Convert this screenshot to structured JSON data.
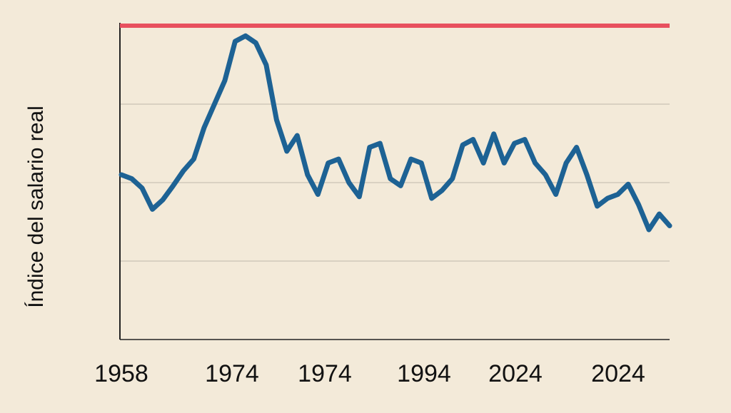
{
  "chart_data": {
    "type": "line",
    "title": "",
    "xlabel": "",
    "ylabel": "Índice del salario real",
    "x_tick_labels": [
      "1958",
      "1974",
      "1974",
      "1994",
      "2024",
      "2024"
    ],
    "grid": true,
    "legend": "none",
    "ylim": [
      0,
      4
    ],
    "reference_line": {
      "y": 4,
      "color": "#e8505e"
    },
    "series_color": "#1d6294",
    "series": [
      {
        "values": [
          2.1,
          2.05,
          1.93,
          1.66,
          1.78,
          1.96,
          2.15,
          2.3,
          2.7,
          3.0,
          3.3,
          3.8,
          3.87,
          3.78,
          3.5,
          2.8,
          2.4,
          2.6,
          2.1,
          1.85,
          2.25,
          2.3,
          2.0,
          1.82,
          2.45,
          2.5,
          2.05,
          1.96,
          2.3,
          2.25,
          1.8,
          1.9,
          2.05,
          2.48,
          2.55,
          2.25,
          2.62,
          2.25,
          2.5,
          2.55,
          2.25,
          2.1,
          1.85,
          2.25,
          2.45,
          2.1,
          1.7,
          1.8,
          1.85,
          1.98,
          1.72,
          1.4,
          1.6,
          1.45
        ]
      }
    ]
  }
}
